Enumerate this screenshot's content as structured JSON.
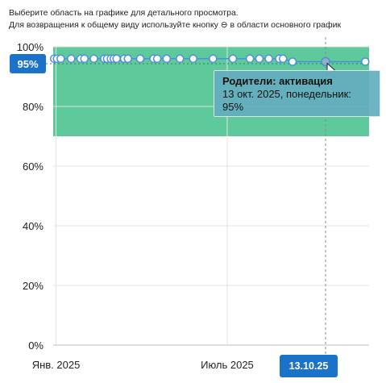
{
  "hint": {
    "line1": "Выберите область на графике для детального просмотра.",
    "line2": "Для возвращения к общему виду используйте кнопку ⊖ в области основного график"
  },
  "tooltip": {
    "title": "Родители: активация",
    "date": "13 окт. 2025, понедельник:",
    "value": "95%"
  },
  "crosshair": {
    "y_label": "95%",
    "x_label": "13.10.25"
  },
  "colors": {
    "band": "#5ec99a",
    "point_fill": "#ffffff",
    "point_stroke": "#4e8fd8",
    "line": "#4e8fd8",
    "badge": "#1a72c9",
    "grid": "#e3e3e3"
  },
  "chart_data": {
    "type": "line",
    "x_tick_labels": [
      "Янв. 2025",
      "Июль 2025"
    ],
    "y_tick_labels": [
      "0%",
      "20%",
      "40%",
      "60%",
      "80%",
      "100%"
    ],
    "ylim": [
      0,
      100
    ],
    "band": [
      70,
      100
    ],
    "grid": true,
    "y_start_of_axis": "2025-01-01",
    "x_end_of_axis": "2025-11-30",
    "series": [
      {
        "points": [
          [
            "2024-12-30",
            96
          ],
          [
            "2025-01-02",
            96
          ],
          [
            "2025-01-06",
            96
          ],
          [
            "2025-01-17",
            96
          ],
          [
            "2025-01-27",
            96
          ],
          [
            "2025-01-31",
            96
          ],
          [
            "2025-02-10",
            96
          ],
          [
            "2025-02-21",
            96
          ],
          [
            "2025-02-24",
            96
          ],
          [
            "2025-02-28",
            96
          ],
          [
            "2025-03-03",
            96
          ],
          [
            "2025-03-06",
            96
          ],
          [
            "2025-03-14",
            96
          ],
          [
            "2025-03-18",
            96
          ],
          [
            "2025-03-31",
            96
          ],
          [
            "2025-04-14",
            96
          ],
          [
            "2025-04-18",
            96
          ],
          [
            "2025-04-28",
            96
          ],
          [
            "2025-05-12",
            96
          ],
          [
            "2025-05-26",
            96
          ],
          [
            "2025-06-16",
            96
          ],
          [
            "2025-07-07",
            96
          ],
          [
            "2025-07-25",
            96
          ],
          [
            "2025-08-04",
            96
          ],
          [
            "2025-08-14",
            96
          ],
          [
            "2025-08-25",
            96
          ],
          [
            "2025-08-29",
            96
          ],
          [
            "2025-09-08",
            95
          ],
          [
            "2025-10-13",
            95
          ],
          [
            "2025-11-24",
            95
          ]
        ]
      }
    ]
  }
}
